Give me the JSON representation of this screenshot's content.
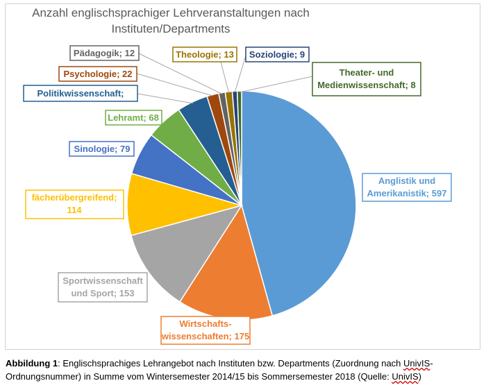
{
  "chart_data": {
    "type": "pie",
    "title": "Anzahl englischsprachiger Lehrveranstaltungen nach Instituten/Departments",
    "title_lines": [
      "Anzahl englischsprachiger Lehrveranstaltungen nach",
      "Instituten/Departments"
    ],
    "slices": [
      {
        "label": "Anglistik und Amerikanistik",
        "value": 597,
        "color": "#5B9BD5",
        "label_text": [
          "Anglistik und",
          "Amerikanistik; 597"
        ]
      },
      {
        "label": "Wirtschaftswissenschaften",
        "value": 175,
        "color": "#ED7D31",
        "label_text": [
          "Wirtschafts-",
          "wissenschaften; 175"
        ]
      },
      {
        "label": "Sportwissenschaft und Sport",
        "value": 153,
        "color": "#A5A5A5",
        "label_text": [
          "Sportwissenschaft",
          "und Sport; 153"
        ]
      },
      {
        "label": "fächerübergreifend",
        "value": 114,
        "color": "#FFC000",
        "label_text": [
          "fächerübergreifend;",
          "114"
        ]
      },
      {
        "label": "Sinologie",
        "value": 79,
        "color": "#4472C4",
        "label_text": [
          "Sinologie; 79"
        ]
      },
      {
        "label": "Lehramt",
        "value": 68,
        "color": "#70AD47",
        "label_text": [
          "Lehramt; 68"
        ]
      },
      {
        "label": "Politikwissenschaft",
        "value": 57,
        "color": "#255E91",
        "label_text": [
          "Politikwissenschaft;"
        ]
      },
      {
        "label": "Psychologie",
        "value": 22,
        "color": "#9E480E",
        "label_text": [
          "Psychologie; 22"
        ]
      },
      {
        "label": "Pädagogik",
        "value": 12,
        "color": "#636363",
        "label_text": [
          "Pädagogik; 12"
        ]
      },
      {
        "label": "Theologie",
        "value": 13,
        "color": "#997300",
        "label_text": [
          "Theologie; 13"
        ]
      },
      {
        "label": "Soziologie",
        "value": 9,
        "color": "#264478",
        "label_text": [
          "Soziologie; 9"
        ]
      },
      {
        "label": "Theater- und Medienwissenschaft",
        "value": 8,
        "color": "#43682B",
        "label_text": [
          "Theater- und",
          "Medienwissenschaft; 8"
        ]
      }
    ],
    "legend": "none"
  },
  "caption": {
    "label": "Abbildung 1",
    "text_before": ": Englischsprachiges Lehrangebot nach Instituten bzw. Departments (Zuordnung nach ",
    "univis_1": "UnivIS",
    "text_mid": "-Ordnungsnummer) in Summe vom Wintersemester 2014/15 bis Sommersemester 2018 (Quelle: ",
    "univis_2": "UnivIS",
    "text_after": ")"
  }
}
